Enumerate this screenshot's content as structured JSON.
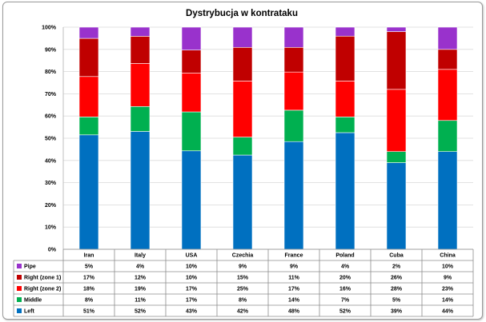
{
  "chart_data": {
    "type": "bar",
    "stacked": true,
    "percent_stacked": true,
    "title": "Dystrybucja w kontrataku",
    "categories": [
      "Iran",
      "Italy",
      "USA",
      "Czechia",
      "France",
      "Poland",
      "Cuba",
      "China"
    ],
    "ylim": [
      0,
      100
    ],
    "yticks": [
      "0%",
      "10%",
      "20%",
      "30%",
      "40%",
      "50%",
      "60%",
      "70%",
      "80%",
      "90%",
      "100%"
    ],
    "grid": true,
    "legend": "data-table-left",
    "series": [
      {
        "name": "Left",
        "color": "#0070c0",
        "values": [
          51,
          52,
          43,
          42,
          48,
          52,
          39,
          44
        ],
        "labels": [
          "51%",
          "52%",
          "43%",
          "42%",
          "48%",
          "52%",
          "39%",
          "44%"
        ]
      },
      {
        "name": "Middle",
        "color": "#00b050",
        "values": [
          8,
          11,
          17,
          8,
          14,
          7,
          5,
          14
        ],
        "labels": [
          "8%",
          "11%",
          "17%",
          "8%",
          "14%",
          "7%",
          "5%",
          "14%"
        ]
      },
      {
        "name": "Right (zone 2)",
        "color": "#ff0000",
        "values": [
          18,
          19,
          17,
          25,
          17,
          16,
          28,
          23
        ],
        "labels": [
          "18%",
          "19%",
          "17%",
          "25%",
          "17%",
          "16%",
          "28%",
          "23%"
        ]
      },
      {
        "name": "Right (zone 1)",
        "color": "#c00000",
        "values": [
          17,
          12,
          10,
          15,
          11,
          20,
          26,
          9
        ],
        "labels": [
          "17%",
          "12%",
          "10%",
          "15%",
          "11%",
          "20%",
          "26%",
          "9%"
        ]
      },
      {
        "name": "Pipe",
        "color": "#9932cc",
        "values": [
          5,
          4,
          10,
          9,
          9,
          4,
          2,
          10
        ],
        "labels": [
          "5%",
          "4%",
          "10%",
          "9%",
          "9%",
          "4%",
          "2%",
          "10%"
        ]
      }
    ]
  }
}
